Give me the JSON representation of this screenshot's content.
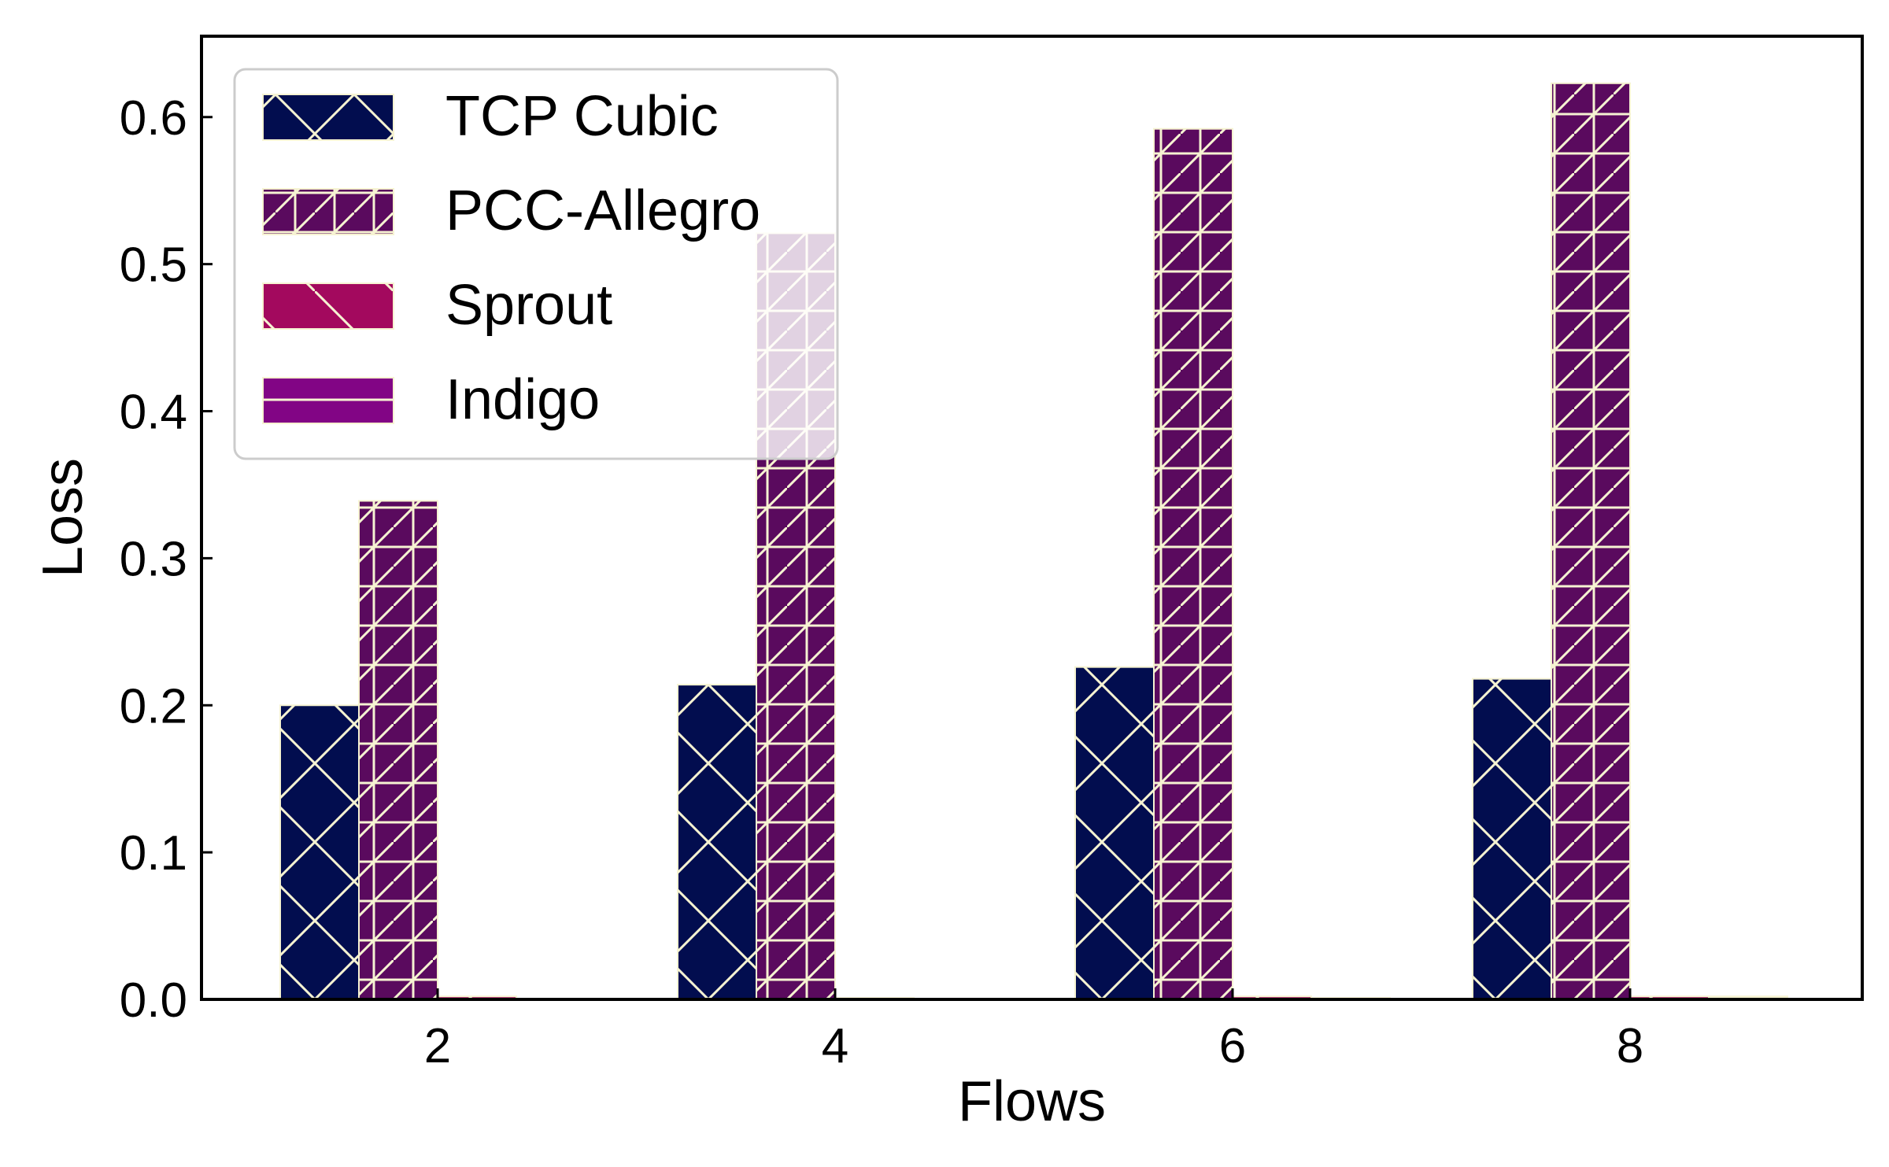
{
  "chart_data": {
    "type": "bar",
    "title": "",
    "xlabel": "Flows",
    "ylabel": "Loss",
    "categories": [
      "2",
      "4",
      "6",
      "8"
    ],
    "ylim": [
      0,
      0.655
    ],
    "yticks": [
      "0.0",
      "0.1",
      "0.2",
      "0.3",
      "0.4",
      "0.5",
      "0.6"
    ],
    "grid": false,
    "legend_position": "top-left",
    "series": [
      {
        "name": "TCP Cubic",
        "values": [
          0.2,
          0.214,
          0.226,
          0.218
        ],
        "color": "#020d4f",
        "hatch": "x"
      },
      {
        "name": "PCC-Allegro",
        "values": [
          0.339,
          0.521,
          0.592,
          0.623
        ],
        "color": "#5a0a5e",
        "hatch": "+/"
      },
      {
        "name": "Sprout",
        "values": [
          0.002,
          0.001,
          0.002,
          0.002
        ],
        "color": "#a3095e",
        "hatch": "\\"
      },
      {
        "name": "Indigo",
        "values": [
          0.0,
          0.0,
          0.001,
          0.002
        ],
        "color": "#820585",
        "hatch": "-"
      }
    ]
  }
}
